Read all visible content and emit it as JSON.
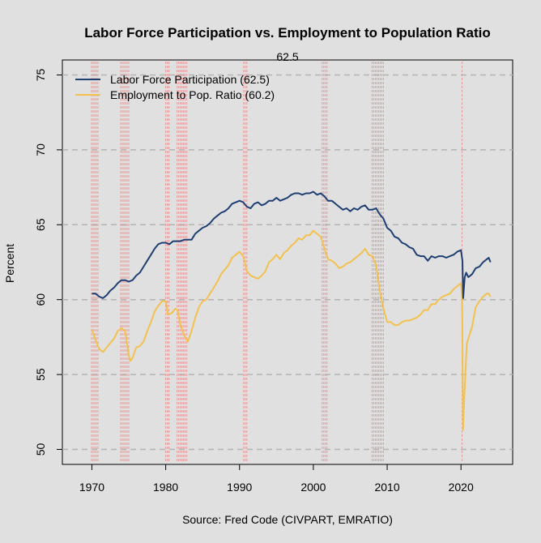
{
  "chart_data": {
    "type": "line",
    "title": "Labor Force Participation vs. Employment to Population Ratio",
    "subtitle": "62.5",
    "xlabel": "Source: Fred Code (CIVPART, EMRATIO)",
    "ylabel": "Percent",
    "xlim": [
      1966,
      2027
    ],
    "ylim": [
      49,
      76
    ],
    "x_ticks": [
      1970,
      1980,
      1990,
      2000,
      2010,
      2020
    ],
    "x_tick_labels": [
      "1970",
      "1980",
      "1990",
      "2000",
      "2010",
      "2020"
    ],
    "y_ticks": [
      50,
      55,
      60,
      65,
      70,
      75
    ],
    "y_tick_labels": [
      "50",
      "55",
      "60",
      "65",
      "70",
      "75"
    ],
    "grid": "horizontal dashed",
    "legend_position": "top-left",
    "recession_color": "#e89a9a",
    "recessions": [
      [
        1969.95,
        1970.9
      ],
      [
        1973.9,
        1975.2
      ],
      [
        1980.0,
        1980.55
      ],
      [
        1981.55,
        1982.9
      ],
      [
        1990.55,
        1991.2
      ],
      [
        2001.2,
        2001.9
      ],
      [
        2007.95,
        2009.5
      ],
      [
        2020.15,
        2020.35
      ]
    ],
    "series": [
      {
        "name": "Labor Force Participation (62.5)",
        "color": "#1f3f73",
        "points": [
          [
            1970.0,
            60.4
          ],
          [
            1970.5,
            60.4
          ],
          [
            1971.0,
            60.2
          ],
          [
            1971.5,
            60.1
          ],
          [
            1972.0,
            60.3
          ],
          [
            1972.5,
            60.6
          ],
          [
            1973.0,
            60.8
          ],
          [
            1973.5,
            61.1
          ],
          [
            1974.0,
            61.3
          ],
          [
            1974.5,
            61.3
          ],
          [
            1975.0,
            61.2
          ],
          [
            1975.5,
            61.3
          ],
          [
            1976.0,
            61.6
          ],
          [
            1976.5,
            61.8
          ],
          [
            1977.0,
            62.2
          ],
          [
            1977.5,
            62.6
          ],
          [
            1978.0,
            63.0
          ],
          [
            1978.5,
            63.4
          ],
          [
            1979.0,
            63.7
          ],
          [
            1979.5,
            63.8
          ],
          [
            1980.0,
            63.8
          ],
          [
            1980.5,
            63.7
          ],
          [
            1981.0,
            63.9
          ],
          [
            1981.5,
            63.9
          ],
          [
            1982.0,
            63.9
          ],
          [
            1982.5,
            64.0
          ],
          [
            1983.0,
            64.0
          ],
          [
            1983.5,
            64.0
          ],
          [
            1984.0,
            64.4
          ],
          [
            1984.5,
            64.6
          ],
          [
            1985.0,
            64.8
          ],
          [
            1985.5,
            64.9
          ],
          [
            1986.0,
            65.1
          ],
          [
            1986.5,
            65.4
          ],
          [
            1987.0,
            65.6
          ],
          [
            1987.5,
            65.8
          ],
          [
            1988.0,
            65.9
          ],
          [
            1988.5,
            66.1
          ],
          [
            1989.0,
            66.4
          ],
          [
            1989.5,
            66.5
          ],
          [
            1990.0,
            66.6
          ],
          [
            1990.5,
            66.5
          ],
          [
            1991.0,
            66.2
          ],
          [
            1991.5,
            66.1
          ],
          [
            1992.0,
            66.4
          ],
          [
            1992.5,
            66.5
          ],
          [
            1993.0,
            66.3
          ],
          [
            1993.5,
            66.4
          ],
          [
            1994.0,
            66.6
          ],
          [
            1994.5,
            66.6
          ],
          [
            1995.0,
            66.8
          ],
          [
            1995.5,
            66.6
          ],
          [
            1996.0,
            66.7
          ],
          [
            1996.5,
            66.8
          ],
          [
            1997.0,
            67.0
          ],
          [
            1997.5,
            67.1
          ],
          [
            1998.0,
            67.1
          ],
          [
            1998.5,
            67.0
          ],
          [
            1999.0,
            67.1
          ],
          [
            1999.5,
            67.1
          ],
          [
            2000.0,
            67.2
          ],
          [
            2000.5,
            67.0
          ],
          [
            2001.0,
            67.1
          ],
          [
            2001.5,
            66.9
          ],
          [
            2002.0,
            66.6
          ],
          [
            2002.5,
            66.6
          ],
          [
            2003.0,
            66.4
          ],
          [
            2003.5,
            66.2
          ],
          [
            2004.0,
            66.0
          ],
          [
            2004.5,
            66.1
          ],
          [
            2005.0,
            65.9
          ],
          [
            2005.5,
            66.1
          ],
          [
            2006.0,
            66.0
          ],
          [
            2006.5,
            66.2
          ],
          [
            2007.0,
            66.3
          ],
          [
            2007.5,
            66.0
          ],
          [
            2008.0,
            66.0
          ],
          [
            2008.5,
            66.1
          ],
          [
            2009.0,
            65.7
          ],
          [
            2009.5,
            65.4
          ],
          [
            2010.0,
            64.8
          ],
          [
            2010.5,
            64.6
          ],
          [
            2011.0,
            64.2
          ],
          [
            2011.5,
            64.1
          ],
          [
            2012.0,
            63.8
          ],
          [
            2012.5,
            63.7
          ],
          [
            2013.0,
            63.5
          ],
          [
            2013.5,
            63.4
          ],
          [
            2014.0,
            63.0
          ],
          [
            2014.5,
            62.9
          ],
          [
            2015.0,
            62.9
          ],
          [
            2015.5,
            62.6
          ],
          [
            2016.0,
            62.9
          ],
          [
            2016.5,
            62.8
          ],
          [
            2017.0,
            62.9
          ],
          [
            2017.5,
            62.9
          ],
          [
            2018.0,
            62.8
          ],
          [
            2018.5,
            62.9
          ],
          [
            2019.0,
            63.0
          ],
          [
            2019.5,
            63.2
          ],
          [
            2020.0,
            63.3
          ],
          [
            2020.2,
            62.6
          ],
          [
            2020.3,
            60.1
          ],
          [
            2020.5,
            61.5
          ],
          [
            2020.7,
            61.8
          ],
          [
            2021.0,
            61.5
          ],
          [
            2021.5,
            61.7
          ],
          [
            2022.0,
            62.1
          ],
          [
            2022.5,
            62.2
          ],
          [
            2023.0,
            62.5
          ],
          [
            2023.5,
            62.7
          ],
          [
            2023.75,
            62.8
          ],
          [
            2024.0,
            62.5
          ]
        ]
      },
      {
        "name": "Employment to Pop. Ratio (60.2)",
        "color": "#f2c14e",
        "points": [
          [
            1970.0,
            58.0
          ],
          [
            1970.5,
            57.3
          ],
          [
            1971.0,
            56.7
          ],
          [
            1971.5,
            56.5
          ],
          [
            1972.0,
            56.8
          ],
          [
            1972.5,
            57.1
          ],
          [
            1973.0,
            57.4
          ],
          [
            1973.5,
            57.9
          ],
          [
            1974.0,
            58.1
          ],
          [
            1974.5,
            57.9
          ],
          [
            1975.0,
            56.3
          ],
          [
            1975.2,
            55.9
          ],
          [
            1975.5,
            56.1
          ],
          [
            1976.0,
            56.8
          ],
          [
            1976.5,
            56.9
          ],
          [
            1977.0,
            57.2
          ],
          [
            1977.5,
            57.9
          ],
          [
            1978.0,
            58.5
          ],
          [
            1978.5,
            59.2
          ],
          [
            1979.0,
            59.6
          ],
          [
            1979.5,
            59.9
          ],
          [
            1980.0,
            59.9
          ],
          [
            1980.3,
            59.0
          ],
          [
            1980.8,
            59.1
          ],
          [
            1981.3,
            59.4
          ],
          [
            1981.6,
            59.3
          ],
          [
            1982.0,
            58.3
          ],
          [
            1982.5,
            57.6
          ],
          [
            1983.0,
            57.2
          ],
          [
            1983.5,
            57.9
          ],
          [
            1984.0,
            58.8
          ],
          [
            1984.5,
            59.5
          ],
          [
            1985.0,
            59.9
          ],
          [
            1985.5,
            60.0
          ],
          [
            1986.0,
            60.4
          ],
          [
            1986.5,
            60.8
          ],
          [
            1987.0,
            61.2
          ],
          [
            1987.5,
            61.7
          ],
          [
            1988.0,
            62.0
          ],
          [
            1988.5,
            62.3
          ],
          [
            1989.0,
            62.8
          ],
          [
            1989.5,
            63.0
          ],
          [
            1990.0,
            63.2
          ],
          [
            1990.5,
            62.9
          ],
          [
            1991.0,
            61.9
          ],
          [
            1991.5,
            61.6
          ],
          [
            1992.0,
            61.5
          ],
          [
            1992.5,
            61.4
          ],
          [
            1993.0,
            61.6
          ],
          [
            1993.5,
            61.9
          ],
          [
            1994.0,
            62.5
          ],
          [
            1994.5,
            62.7
          ],
          [
            1995.0,
            63.0
          ],
          [
            1995.5,
            62.7
          ],
          [
            1996.0,
            63.1
          ],
          [
            1996.5,
            63.3
          ],
          [
            1997.0,
            63.6
          ],
          [
            1997.5,
            63.8
          ],
          [
            1998.0,
            64.1
          ],
          [
            1998.5,
            64.0
          ],
          [
            1999.0,
            64.3
          ],
          [
            1999.5,
            64.3
          ],
          [
            2000.0,
            64.6
          ],
          [
            2000.5,
            64.4
          ],
          [
            2001.0,
            64.2
          ],
          [
            2001.5,
            63.4
          ],
          [
            2002.0,
            62.7
          ],
          [
            2002.5,
            62.6
          ],
          [
            2003.0,
            62.4
          ],
          [
            2003.5,
            62.1
          ],
          [
            2004.0,
            62.2
          ],
          [
            2004.5,
            62.4
          ],
          [
            2005.0,
            62.5
          ],
          [
            2005.5,
            62.7
          ],
          [
            2006.0,
            62.9
          ],
          [
            2006.5,
            63.1
          ],
          [
            2007.0,
            63.4
          ],
          [
            2007.5,
            63.0
          ],
          [
            2008.0,
            62.9
          ],
          [
            2008.5,
            62.3
          ],
          [
            2009.0,
            60.6
          ],
          [
            2009.5,
            59.4
          ],
          [
            2010.0,
            58.5
          ],
          [
            2010.5,
            58.5
          ],
          [
            2011.0,
            58.3
          ],
          [
            2011.5,
            58.3
          ],
          [
            2012.0,
            58.5
          ],
          [
            2012.5,
            58.6
          ],
          [
            2013.0,
            58.6
          ],
          [
            2013.5,
            58.7
          ],
          [
            2014.0,
            58.8
          ],
          [
            2014.5,
            59.0
          ],
          [
            2015.0,
            59.3
          ],
          [
            2015.5,
            59.3
          ],
          [
            2016.0,
            59.7
          ],
          [
            2016.5,
            59.7
          ],
          [
            2017.0,
            60.0
          ],
          [
            2017.5,
            60.2
          ],
          [
            2018.0,
            60.3
          ],
          [
            2018.5,
            60.4
          ],
          [
            2019.0,
            60.7
          ],
          [
            2019.5,
            60.9
          ],
          [
            2020.0,
            61.1
          ],
          [
            2020.15,
            60.2
          ],
          [
            2020.28,
            51.3
          ],
          [
            2020.4,
            52.9
          ],
          [
            2020.6,
            55.2
          ],
          [
            2020.8,
            57.1
          ],
          [
            2021.0,
            57.4
          ],
          [
            2021.5,
            58.2
          ],
          [
            2022.0,
            59.5
          ],
          [
            2022.5,
            59.9
          ],
          [
            2023.0,
            60.2
          ],
          [
            2023.5,
            60.4
          ],
          [
            2023.75,
            60.4
          ],
          [
            2024.0,
            60.2
          ]
        ]
      }
    ]
  }
}
